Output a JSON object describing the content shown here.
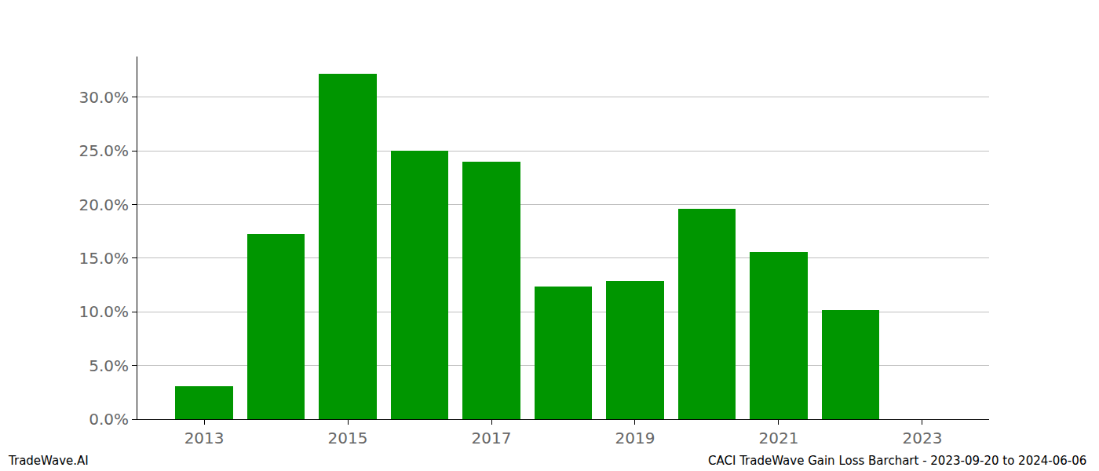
{
  "chart_data": {
    "type": "bar",
    "x": [
      2013,
      2014,
      2015,
      2016,
      2017,
      2018,
      2019,
      2020,
      2021,
      2022
    ],
    "values": [
      3.1,
      17.3,
      32.2,
      25.0,
      24.0,
      12.4,
      12.9,
      19.6,
      15.6,
      10.2
    ],
    "color": "#009600",
    "xlim": [
      2012.07,
      2023.93
    ],
    "xticks": [
      2013,
      2015,
      2017,
      2019,
      2021,
      2023
    ],
    "ylim": [
      0,
      33.8
    ],
    "yticks": [
      {
        "value": 0,
        "label": "0.0%"
      },
      {
        "value": 5,
        "label": "5.0%"
      },
      {
        "value": 10,
        "label": "10.0%"
      },
      {
        "value": 15,
        "label": "15.0%"
      },
      {
        "value": 20,
        "label": "20.0%"
      },
      {
        "value": 25,
        "label": "25.0%"
      },
      {
        "value": 30,
        "label": "30.0%"
      }
    ],
    "grid": true,
    "annotations": [
      "TradeWave.AI",
      "CACI TradeWave Gain Loss Barchart - 2023-09-20 to 2024-06-06"
    ]
  }
}
